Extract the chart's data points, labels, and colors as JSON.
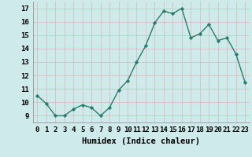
{
  "xlabel": "Humidex (Indice chaleur)",
  "x": [
    0,
    1,
    2,
    3,
    4,
    5,
    6,
    7,
    8,
    9,
    10,
    11,
    12,
    13,
    14,
    15,
    16,
    17,
    18,
    19,
    20,
    21,
    22,
    23
  ],
  "y": [
    10.5,
    9.9,
    9.0,
    9.0,
    9.5,
    9.8,
    9.6,
    9.0,
    9.6,
    10.9,
    11.6,
    13.0,
    14.2,
    15.9,
    16.8,
    16.6,
    17.0,
    14.8,
    15.1,
    15.8,
    14.6,
    14.8,
    13.6,
    11.5
  ],
  "line_color": "#2d7a6e",
  "marker": "D",
  "markersize": 2.2,
  "linewidth": 1.0,
  "bg_color": "#ceeaea",
  "grid_color": "#c0d8d8",
  "ylim": [
    8.5,
    17.5
  ],
  "xlim": [
    -0.5,
    23.5
  ],
  "yticks": [
    9,
    10,
    11,
    12,
    13,
    14,
    15,
    16,
    17
  ],
  "xtick_labels": [
    "0",
    "1",
    "2",
    "3",
    "4",
    "5",
    "6",
    "7",
    "8",
    "9",
    "10",
    "11",
    "12",
    "13",
    "14",
    "15",
    "16",
    "17",
    "18",
    "19",
    "20",
    "21",
    "22",
    "23"
  ],
  "tick_fontsize": 6.5,
  "label_fontsize": 7.5
}
